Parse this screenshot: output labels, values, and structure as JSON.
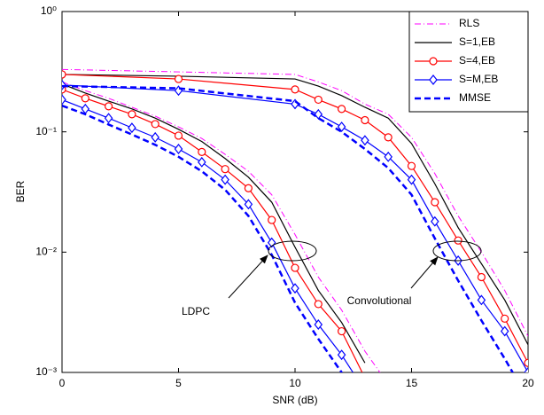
{
  "chart_data": {
    "type": "line",
    "xlabel": "SNR (dB)",
    "ylabel": "BER",
    "log_y": true,
    "grid": false,
    "legend": "upper right",
    "xlim": [
      0,
      20
    ],
    "ylim": [
      0.001,
      1
    ],
    "xticks": [
      0,
      5,
      10,
      15,
      20
    ],
    "yticks": [
      {
        "value": 0.001,
        "label": "10⁻³"
      },
      {
        "value": 0.01,
        "label": "10⁻²"
      },
      {
        "value": 0.1,
        "label": "10⁻¹"
      },
      {
        "value": 1,
        "label": "10⁰"
      }
    ],
    "annotations": [
      {
        "text": "LDPC"
      },
      {
        "text": "Convolutional"
      }
    ],
    "series": [
      {
        "name": "RLS",
        "color": "#ff00ff",
        "dash": "7,3,1,3",
        "width": 1,
        "marker": "none",
        "curves": [
          {
            "x": [
              0,
              1,
              2,
              3,
              4,
              5,
              6,
              7,
              8,
              9,
              10,
              11,
              12,
              13,
              14
            ],
            "values": [
              0.26,
              0.22,
              0.19,
              0.16,
              0.135,
              0.11,
              0.088,
              0.065,
              0.047,
              0.03,
              0.014,
              0.0062,
              0.0033,
              0.0015,
              0.0008
            ]
          },
          {
            "x": [
              0,
              5,
              10,
              11,
              12,
              13,
              14,
              15,
              16,
              17,
              18,
              19,
              20
            ],
            "values": [
              0.33,
              0.315,
              0.3,
              0.26,
              0.22,
              0.17,
              0.14,
              0.09,
              0.045,
              0.02,
              0.01,
              0.0048,
              0.002
            ]
          }
        ]
      },
      {
        "name": "S=1,EB",
        "color": "#000000",
        "dash": "none",
        "width": 1.2,
        "marker": "none",
        "curves": [
          {
            "x": [
              0,
              1,
              2,
              3,
              4,
              5,
              6,
              7,
              8,
              9,
              10,
              11,
              12,
              13
            ],
            "values": [
              0.25,
              0.21,
              0.18,
              0.155,
              0.13,
              0.105,
              0.083,
              0.06,
              0.042,
              0.026,
              0.011,
              0.0048,
              0.0026,
              0.0012
            ]
          },
          {
            "x": [
              0,
              5,
              10,
              11,
              12,
              13,
              14,
              15,
              16,
              17,
              18,
              19,
              20
            ],
            "values": [
              0.3,
              0.29,
              0.275,
              0.24,
              0.2,
              0.16,
              0.13,
              0.08,
              0.037,
              0.016,
              0.008,
              0.004,
              0.0017
            ]
          }
        ]
      },
      {
        "name": "S=4,EB",
        "color": "#ff0000",
        "dash": "none",
        "width": 1.2,
        "marker": "circle",
        "curves": [
          {
            "x": [
              0,
              1,
              2,
              3,
              4,
              5,
              6,
              7,
              8,
              9,
              10,
              11,
              12,
              13
            ],
            "values": [
              0.225,
              0.19,
              0.163,
              0.14,
              0.116,
              0.093,
              0.068,
              0.049,
              0.034,
              0.0185,
              0.0074,
              0.0037,
              0.0022,
              0.0009
            ]
          },
          {
            "x": [
              0,
              5,
              10,
              11,
              12,
              13,
              14,
              15,
              16,
              17,
              18,
              19,
              20
            ],
            "values": [
              0.3,
              0.275,
              0.225,
              0.185,
              0.155,
              0.125,
              0.09,
              0.052,
              0.026,
              0.0125,
              0.0062,
              0.0028,
              0.0012
            ]
          }
        ]
      },
      {
        "name": "S=M,EB",
        "color": "#0000ff",
        "dash": "none",
        "width": 1.2,
        "marker": "diamond",
        "curves": [
          {
            "x": [
              0,
              1,
              2,
              3,
              4,
              5,
              6,
              7,
              8,
              9,
              10,
              11,
              12,
              13
            ],
            "values": [
              0.185,
              0.155,
              0.13,
              0.108,
              0.09,
              0.072,
              0.056,
              0.04,
              0.025,
              0.012,
              0.005,
              0.0025,
              0.0014,
              0.0007
            ]
          },
          {
            "x": [
              0,
              5,
              10,
              11,
              12,
              13,
              14,
              15,
              16,
              17,
              18,
              19,
              20
            ],
            "values": [
              0.245,
              0.22,
              0.17,
              0.14,
              0.11,
              0.085,
              0.062,
              0.04,
              0.018,
              0.0085,
              0.004,
              0.0022,
              0.001
            ]
          }
        ]
      },
      {
        "name": "MMSE",
        "color": "#0000ff",
        "dash": "7,4",
        "width": 2.5,
        "marker": "none",
        "curves": [
          {
            "x": [
              0,
              1,
              2,
              3,
              4,
              5,
              6,
              7,
              8,
              9,
              10,
              11,
              12,
              13
            ],
            "values": [
              0.165,
              0.14,
              0.115,
              0.095,
              0.078,
              0.062,
              0.047,
              0.033,
              0.02,
              0.0095,
              0.0038,
              0.0019,
              0.001,
              0.0005
            ]
          },
          {
            "x": [
              0,
              5,
              10,
              11,
              12,
              13,
              14,
              15,
              16,
              17,
              18,
              19,
              20
            ],
            "values": [
              0.24,
              0.23,
              0.18,
              0.13,
              0.1,
              0.072,
              0.05,
              0.03,
              0.013,
              0.0058,
              0.0027,
              0.0013,
              0.0006
            ]
          }
        ]
      }
    ]
  }
}
